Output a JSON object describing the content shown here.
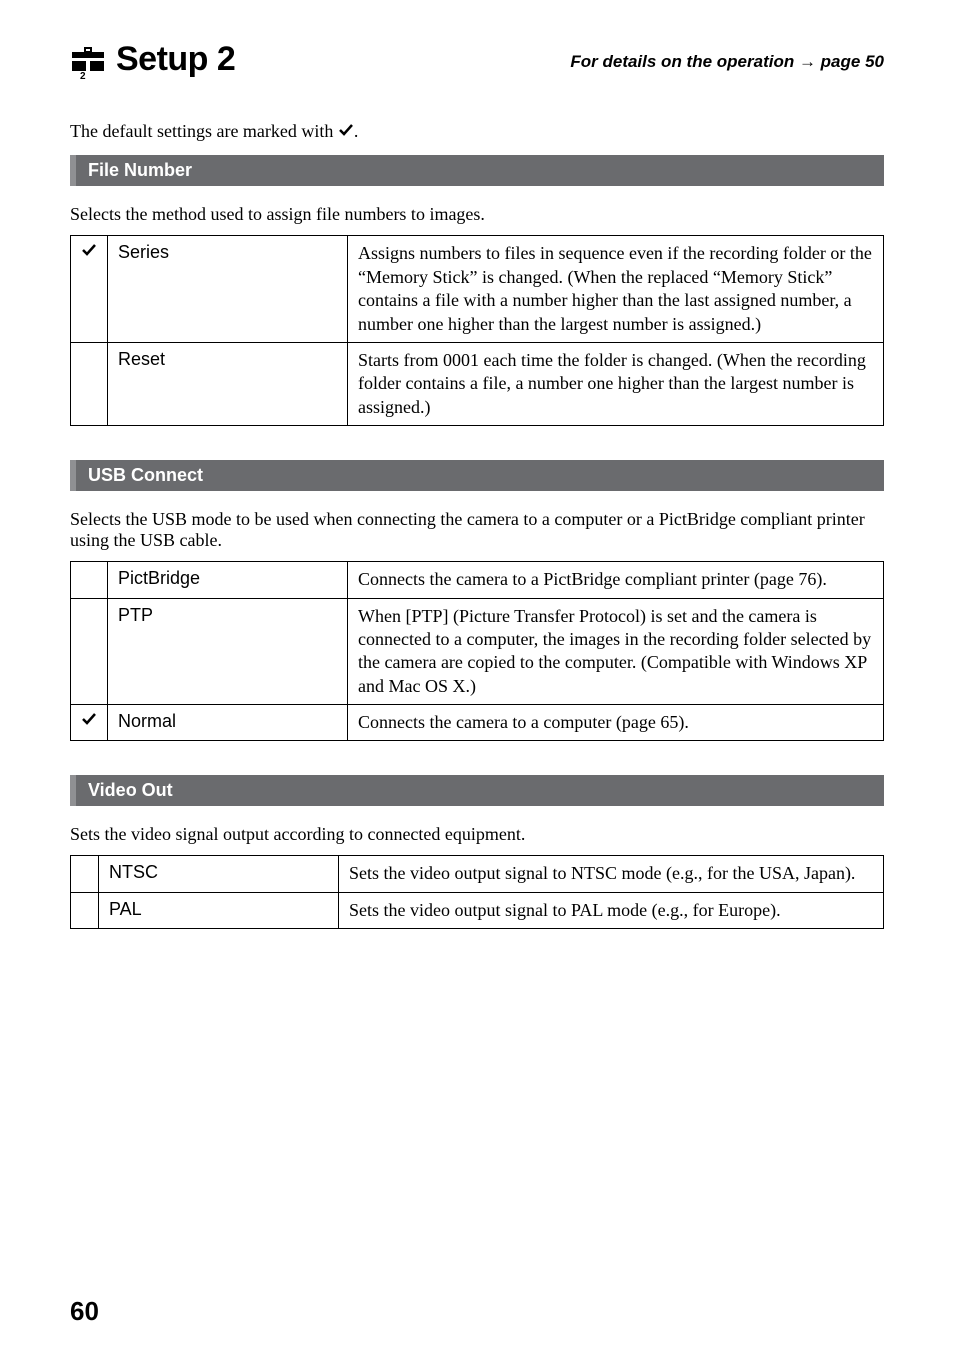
{
  "header": {
    "title": "Setup 2",
    "detail_prefix": "For details on the operation ",
    "detail_suffix": " page 50"
  },
  "intro_prefix": "The default settings are marked with ",
  "intro_suffix": ".",
  "sections": [
    {
      "bar": "File Number",
      "desc": "Selects the method used to assign file numbers to images.",
      "rows": [
        {
          "checked": true,
          "label": "Series",
          "text": "Assigns numbers to files in sequence even if the recording folder or the “Memory Stick” is changed. (When the replaced “Memory Stick” contains a file with a number higher than the last assigned number, a number one higher than the largest number is assigned.)"
        },
        {
          "checked": false,
          "label": "Reset",
          "text": "Starts from 0001 each time the folder is changed. (When the recording folder contains a file, a number one higher than the largest number is assigned.)"
        }
      ]
    },
    {
      "bar": "USB Connect",
      "desc": "Selects the USB mode to be used when connecting the camera to a computer or a PictBridge compliant printer using the USB cable.",
      "rows": [
        {
          "checked": false,
          "label": "PictBridge",
          "text": "Connects the camera to a PictBridge compliant printer (page 76)."
        },
        {
          "checked": false,
          "label": "PTP",
          "text": "When [PTP] (Picture Transfer Protocol) is set and the camera is connected to a computer, the images in the recording folder selected by the camera are copied to the computer. (Compatible with Windows XP and Mac OS X.)"
        },
        {
          "checked": true,
          "label": "Normal",
          "text": "Connects the camera to a computer (page 65)."
        }
      ]
    },
    {
      "bar": "Video Out",
      "desc": "Sets the video signal output according to connected equipment.",
      "rows": [
        {
          "checked": false,
          "label": "NTSC",
          "text": "Sets the video output signal to NTSC mode (e.g., for the USA, Japan)."
        },
        {
          "checked": false,
          "label": "PAL",
          "text": "Sets the video output signal to PAL mode (e.g., for Europe)."
        }
      ]
    }
  ],
  "page_number": "60"
}
